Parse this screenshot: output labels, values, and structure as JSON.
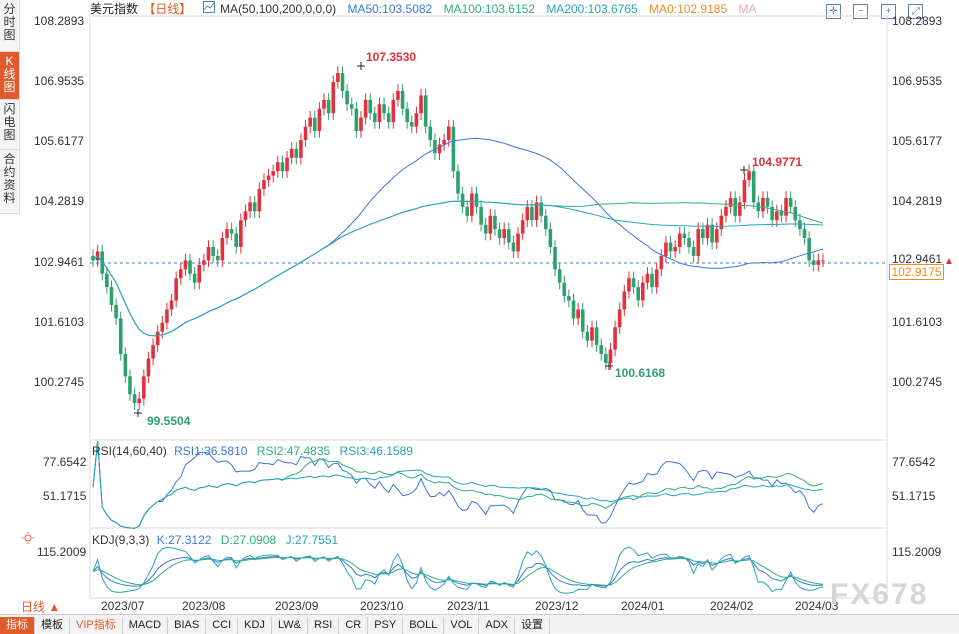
{
  "sidebar": {
    "tabs": [
      {
        "label": "分时图"
      },
      {
        "label": "K线图"
      },
      {
        "label": "闪电图"
      },
      {
        "label": "合约资料"
      }
    ]
  },
  "header": {
    "title": "美元指数",
    "period_tag": "【日线】",
    "ma_params": "MA(50,100,200,0,0,0)",
    "ma50": "MA50:103.5082",
    "ma100": "MA100:103.6152",
    "ma200": "MA200:103.6765",
    "ma0": "MA0:102.9185",
    "ma": "MA"
  },
  "colors": {
    "up": "#e0313c",
    "down": "#2ea06e",
    "ma50": "#3a78d8",
    "ma100": "#2faf7f",
    "ma200": "#28a3bd",
    "ma0": "#f08a24",
    "tab_active": "#e05a2b"
  },
  "price_axis": {
    "ticks": [
      "108.2893",
      "106.9535",
      "105.6177",
      "104.2819",
      "102.9461",
      "101.6103",
      "100.2745"
    ],
    "current": "102.9175"
  },
  "annotations": {
    "high": "107.3530",
    "low1": "99.5504",
    "low2": "100.6168",
    "high2": "104.9771"
  },
  "rsi": {
    "label": "RSI(14,60,40)",
    "rsi1": "RSI1:36.5810",
    "rsi2": "RSI2:47.4835",
    "rsi3": "RSI3:46.1589",
    "ticks": [
      "77.6542",
      "51.1715"
    ]
  },
  "kdj": {
    "label": "KDJ(9,3,3)",
    "k": "K:27.3122",
    "d": "D:27.0908",
    "j": "J:27.7551",
    "ticks": [
      "115.2009"
    ]
  },
  "xaxis": {
    "labels": [
      "2023/07",
      "2023/08",
      "2023/09",
      "2023/10",
      "2023/11",
      "2023/12",
      "2024/01",
      "2024/02",
      "2024/03"
    ]
  },
  "period_button": "日线 ▲",
  "bottom_tabs": [
    "指标",
    "模板",
    "VIP指标",
    "MACD",
    "BIAS",
    "CCI",
    "KDJ",
    "LW&",
    "RSI",
    "CR",
    "PSY",
    "BOLL",
    "VOL",
    "ADX",
    "设置"
  ],
  "watermark": "FX678",
  "chart_data": {
    "type": "candlestick",
    "x_range": [
      "2023/07",
      "2024/03"
    ],
    "ylim": [
      99.5,
      108.29
    ],
    "closes": [
      102.9,
      103.1,
      102.6,
      102.3,
      101.9,
      101.6,
      100.8,
      100.3,
      99.9,
      99.7,
      99.8,
      100.3,
      100.7,
      101.0,
      101.3,
      101.5,
      101.8,
      102.0,
      102.5,
      102.7,
      102.9,
      102.6,
      102.4,
      102.8,
      102.9,
      103.2,
      103.0,
      102.9,
      103.4,
      103.6,
      103.5,
      103.2,
      103.8,
      104.0,
      104.2,
      104.0,
      104.5,
      104.7,
      104.8,
      104.9,
      105.1,
      104.9,
      105.2,
      105.4,
      105.2,
      105.6,
      105.9,
      106.1,
      105.8,
      106.3,
      106.5,
      106.2,
      106.9,
      107.1,
      106.7,
      106.4,
      106.3,
      105.8,
      106.1,
      106.5,
      106.2,
      106.0,
      106.4,
      106.2,
      106.0,
      106.5,
      106.7,
      106.3,
      106.0,
      105.9,
      106.2,
      106.6,
      105.9,
      105.6,
      105.3,
      105.5,
      105.6,
      105.9,
      104.9,
      104.4,
      104.1,
      103.9,
      104.4,
      104.1,
      103.7,
      103.5,
      103.9,
      103.6,
      103.4,
      103.6,
      103.3,
      103.1,
      103.5,
      103.8,
      104.1,
      103.8,
      104.2,
      103.9,
      103.6,
      103.2,
      102.7,
      102.4,
      102.1,
      102.0,
      101.6,
      101.8,
      101.3,
      101.1,
      101.4,
      101.0,
      100.8,
      100.6,
      100.9,
      101.4,
      101.8,
      102.2,
      102.5,
      102.3,
      102.0,
      102.4,
      102.6,
      102.3,
      102.7,
      103.0,
      103.3,
      103.1,
      103.2,
      103.5,
      103.4,
      103.2,
      103.0,
      103.6,
      103.4,
      103.7,
      103.3,
      103.6,
      103.9,
      104.1,
      104.3,
      103.9,
      104.2,
      104.7,
      104.9,
      104.2,
      104.0,
      104.3,
      104.1,
      103.8,
      104.0,
      103.9,
      104.3,
      104.1,
      103.8,
      103.6,
      103.4,
      102.9,
      102.8,
      102.9,
      102.9
    ]
  }
}
